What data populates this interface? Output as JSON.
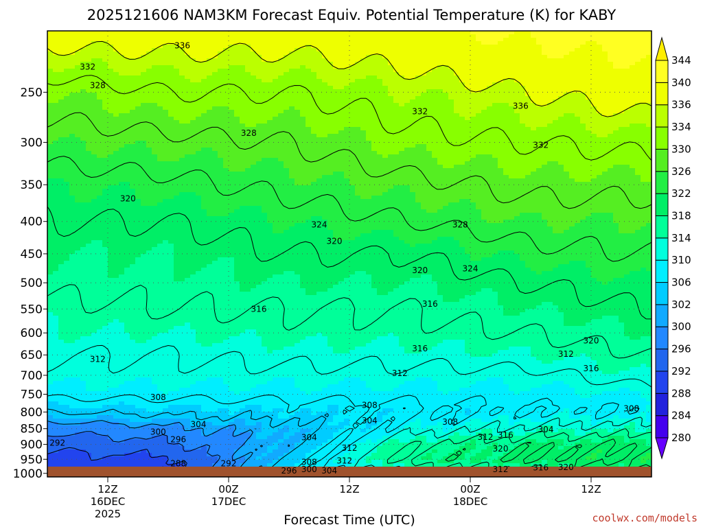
{
  "title": "2025121606 NAM3KM Forecast Equiv. Potential Temperature (K) for KABY",
  "watermark": "coolwx.com/models",
  "watermark_color": "#c0392b",
  "ground_color": "#a0522d",
  "chart_data": {
    "type": "heatmap",
    "title": "2025121606 NAM3KM Forecast Equiv. Potential Temperature (K) for KABY",
    "xlabel": "Forecast Time (UTC)",
    "ylabel": "",
    "x_ticks": [
      {
        "h": 6,
        "lines": [
          "12Z",
          "16DEC",
          "2025"
        ]
      },
      {
        "h": 18,
        "lines": [
          "00Z",
          "17DEC"
        ]
      },
      {
        "h": 30,
        "lines": [
          "12Z"
        ]
      },
      {
        "h": 42,
        "lines": [
          "00Z",
          "18DEC"
        ]
      },
      {
        "h": 54,
        "lines": [
          "12Z"
        ]
      }
    ],
    "xlim": [
      0,
      60
    ],
    "y_ticks": [
      250,
      300,
      350,
      400,
      450,
      500,
      550,
      600,
      650,
      700,
      750,
      800,
      850,
      900,
      950,
      1000
    ],
    "ylim": [
      200,
      1013
    ],
    "y_scale": "log",
    "grid": true,
    "colorbar": {
      "ticks": [
        280,
        284,
        288,
        292,
        296,
        300,
        302,
        306,
        310,
        314,
        318,
        322,
        326,
        330,
        334,
        336,
        340,
        344
      ],
      "colors": [
        "#6600ff",
        "#4400ee",
        "#2222dd",
        "#2244ee",
        "#2266ee",
        "#2288ff",
        "#11aaff",
        "#00ccff",
        "#00eeff",
        "#00ffdd",
        "#00ff99",
        "#00ee66",
        "#22ee44",
        "#55ee22",
        "#88ff00",
        "#bbff00",
        "#eeff00",
        "#ffff22",
        "#ffee00"
      ],
      "extend": "both"
    },
    "profiles": [
      {
        "h": 0,
        "p": [
          200,
          250,
          300,
          350,
          400,
          450,
          500,
          550,
          600,
          650,
          700,
          750,
          800,
          850,
          900,
          950,
          1000
        ],
        "theta_e": [
          338,
          330,
          326,
          322,
          320,
          318,
          317,
          315,
          314,
          312,
          311,
          309,
          304,
          297,
          293,
          291,
          290
        ]
      },
      {
        "h": 12,
        "p": [
          200,
          250,
          300,
          350,
          400,
          450,
          500,
          550,
          600,
          650,
          700,
          750,
          800,
          850,
          900,
          950,
          1000
        ],
        "theta_e": [
          338,
          332,
          327,
          323,
          320,
          318,
          317,
          316,
          314,
          312,
          311,
          309,
          305,
          299,
          295,
          291,
          290
        ]
      },
      {
        "h": 24,
        "p": [
          200,
          250,
          300,
          350,
          400,
          450,
          500,
          550,
          600,
          650,
          700,
          750,
          800,
          850,
          900,
          950,
          1000
        ],
        "theta_e": [
          338,
          332,
          328,
          325,
          322,
          320,
          318,
          316,
          315,
          313,
          311,
          309,
          306,
          302,
          302,
          305,
          306
        ]
      },
      {
        "h": 36,
        "p": [
          200,
          250,
          300,
          350,
          400,
          450,
          500,
          550,
          600,
          650,
          700,
          750,
          800,
          850,
          900,
          950,
          1000
        ],
        "theta_e": [
          339,
          334,
          331,
          327,
          324,
          320,
          318,
          316,
          315,
          313,
          311,
          309,
          307,
          310,
          316,
          318,
          312
        ]
      },
      {
        "h": 48,
        "p": [
          200,
          250,
          300,
          350,
          400,
          450,
          500,
          550,
          600,
          650,
          700,
          750,
          800,
          850,
          900,
          950,
          1000
        ],
        "theta_e": [
          341,
          336,
          332,
          329,
          326,
          323,
          320,
          318,
          316,
          314,
          311,
          309,
          308,
          313,
          319,
          320,
          314
        ]
      },
      {
        "h": 60,
        "p": [
          200,
          250,
          300,
          350,
          400,
          450,
          500,
          550,
          600,
          650,
          700,
          750,
          800,
          850,
          900,
          950,
          1000
        ],
        "theta_e": [
          342,
          338,
          333,
          329,
          326,
          324,
          322,
          320,
          318,
          316,
          314,
          310,
          308,
          314,
          320,
          322,
          318
        ]
      }
    ],
    "contour_levels": [
      288,
      292,
      296,
      300,
      304,
      308,
      312,
      316,
      320,
      324,
      328,
      332,
      336
    ],
    "contour_labels": [
      {
        "text": "336",
        "h": 13.4,
        "p": 211
      },
      {
        "text": "332",
        "h": 4.0,
        "p": 228
      },
      {
        "text": "328",
        "h": 5.0,
        "p": 244
      },
      {
        "text": "328",
        "h": 20.0,
        "p": 290
      },
      {
        "text": "320",
        "h": 8.0,
        "p": 368
      },
      {
        "text": "324",
        "h": 27.0,
        "p": 405
      },
      {
        "text": "320",
        "h": 28.5,
        "p": 430
      },
      {
        "text": "316",
        "h": 21.0,
        "p": 550
      },
      {
        "text": "312",
        "h": 5.0,
        "p": 660
      },
      {
        "text": "308",
        "h": 11.0,
        "p": 758
      },
      {
        "text": "304",
        "h": 15.0,
        "p": 837
      },
      {
        "text": "300",
        "h": 11.0,
        "p": 860
      },
      {
        "text": "296",
        "h": 13.0,
        "p": 884
      },
      {
        "text": "292",
        "h": 1.0,
        "p": 895
      },
      {
        "text": "288",
        "h": 13.0,
        "p": 965
      },
      {
        "text": "292",
        "h": 18.0,
        "p": 965
      },
      {
        "text": "296",
        "h": 24.0,
        "p": 990
      },
      {
        "text": "300",
        "h": 26.0,
        "p": 985
      },
      {
        "text": "304",
        "h": 28.0,
        "p": 990
      },
      {
        "text": "308",
        "h": 26.0,
        "p": 960
      },
      {
        "text": "312",
        "h": 29.5,
        "p": 955
      },
      {
        "text": "312",
        "h": 30.0,
        "p": 912
      },
      {
        "text": "304",
        "h": 26.0,
        "p": 878
      },
      {
        "text": "308",
        "h": 32.0,
        "p": 780
      },
      {
        "text": "304",
        "h": 32.0,
        "p": 826
      },
      {
        "text": "308",
        "h": 40.0,
        "p": 830
      },
      {
        "text": "312",
        "h": 43.5,
        "p": 876
      },
      {
        "text": "316",
        "h": 45.5,
        "p": 870
      },
      {
        "text": "304",
        "h": 49.5,
        "p": 853
      },
      {
        "text": "320",
        "h": 45.0,
        "p": 915
      },
      {
        "text": "312",
        "h": 45.0,
        "p": 985
      },
      {
        "text": "316",
        "h": 49.0,
        "p": 980
      },
      {
        "text": "320",
        "h": 51.5,
        "p": 978
      },
      {
        "text": "312",
        "h": 35.0,
        "p": 695
      },
      {
        "text": "316",
        "h": 37.0,
        "p": 635
      },
      {
        "text": "316",
        "h": 38.0,
        "p": 540
      },
      {
        "text": "320",
        "h": 37.0,
        "p": 478
      },
      {
        "text": "324",
        "h": 42.0,
        "p": 475
      },
      {
        "text": "328",
        "h": 41.0,
        "p": 405
      },
      {
        "text": "332",
        "h": 37.0,
        "p": 268
      },
      {
        "text": "336",
        "h": 47.0,
        "p": 263
      },
      {
        "text": "332",
        "h": 49.0,
        "p": 303
      },
      {
        "text": "312",
        "h": 51.5,
        "p": 648
      },
      {
        "text": "320",
        "h": 54.0,
        "p": 617
      },
      {
        "text": "316",
        "h": 54.0,
        "p": 683
      },
      {
        "text": "308",
        "h": 58.0,
        "p": 790
      }
    ]
  }
}
